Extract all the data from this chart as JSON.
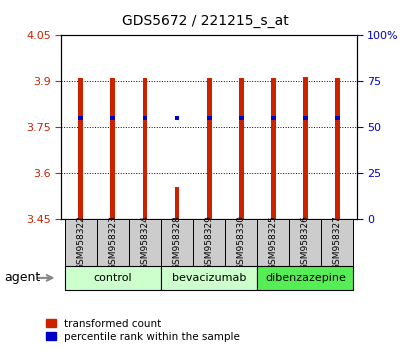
{
  "title": "GDS5672 / 221215_s_at",
  "samples": [
    "GSM958322",
    "GSM958323",
    "GSM958324",
    "GSM958328",
    "GSM958329",
    "GSM958330",
    "GSM958325",
    "GSM958326",
    "GSM958327"
  ],
  "red_values": [
    3.91,
    3.91,
    3.91,
    3.555,
    3.91,
    3.91,
    3.91,
    3.915,
    3.91
  ],
  "blue_values": [
    3.782,
    3.782,
    3.782,
    3.782,
    3.782,
    3.782,
    3.782,
    3.782,
    3.782
  ],
  "blue_gsm328_value": 3.782,
  "ymin": 3.45,
  "ymax": 4.05,
  "yticks": [
    3.45,
    3.6,
    3.75,
    3.9,
    4.05
  ],
  "ytick_labels": [
    "3.45",
    "3.6",
    "3.75",
    "3.9",
    "4.05"
  ],
  "right_yticks": [
    0,
    25,
    50,
    75,
    100
  ],
  "right_ytick_labels": [
    "0",
    "25",
    "50",
    "75",
    "100%"
  ],
  "bar_bottom": 3.45,
  "bar_width": 0.15,
  "red_color": "#cc2200",
  "blue_color": "#0000cc",
  "group_info": [
    {
      "name": "control",
      "start": 0,
      "end": 2,
      "color": "#ccffcc"
    },
    {
      "name": "bevacizumab",
      "start": 3,
      "end": 5,
      "color": "#ccffcc"
    },
    {
      "name": "dibenzazepine",
      "start": 6,
      "end": 8,
      "color": "#55ee55"
    }
  ],
  "agent_label": "agent",
  "legend_red": "transformed count",
  "legend_blue": "percentile rank within the sample",
  "sample_box_color": "#cccccc",
  "title_fontsize": 10,
  "axis_fontsize": 8.5,
  "tick_fontsize": 8,
  "sample_fontsize": 6.5,
  "group_fontsize": 8
}
